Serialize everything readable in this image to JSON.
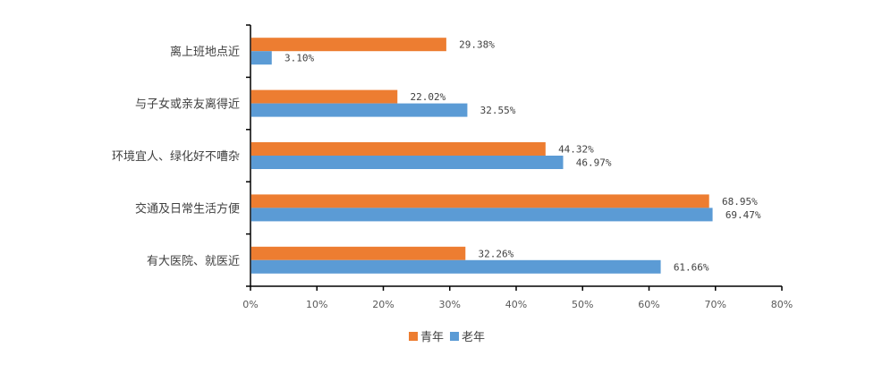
{
  "chart_data": {
    "type": "bar",
    "orientation": "horizontal",
    "categories": [
      "离上班地点近",
      "与子女或亲友离得近",
      "环境宜人、绿化好不嘈杂",
      "交通及日常生活方便",
      "有大医院、就医近"
    ],
    "series": [
      {
        "name": "青年",
        "color": "#ED7D31",
        "values": [
          29.38,
          22.02,
          44.32,
          68.95,
          32.26
        ],
        "labels": [
          "29.38%",
          "22.02%",
          "44.32%",
          "68.95%",
          "32.26%"
        ]
      },
      {
        "name": "老年",
        "color": "#5B9BD5",
        "values": [
          3.1,
          32.55,
          46.97,
          69.47,
          61.66
        ],
        "labels": [
          "3.10%",
          "32.55%",
          "46.97%",
          "69.47%",
          "61.66%"
        ]
      }
    ],
    "xlim": [
      0,
      80
    ],
    "xticks": [
      "0%",
      "10%",
      "20%",
      "30%",
      "40%",
      "50%",
      "60%",
      "70%",
      "80%"
    ],
    "title": "",
    "xlabel": "",
    "ylabel": "",
    "grid": false,
    "legend": "bottom"
  }
}
